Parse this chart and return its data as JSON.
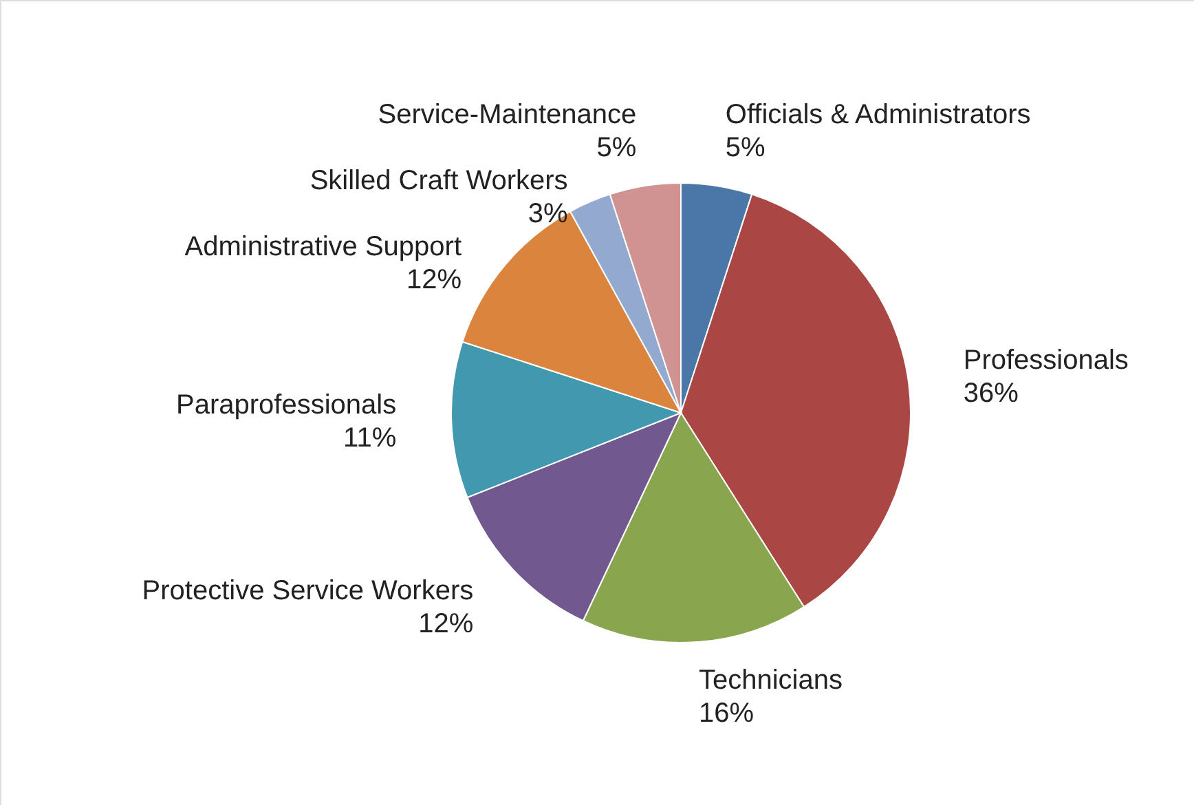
{
  "chart_data": {
    "type": "pie",
    "categories": [
      "Officials & Administrators",
      "Professionals",
      "Technicians",
      "Protective Service Workers",
      "Paraprofessionals",
      "Administrative Support",
      "Skilled Craft  Workers",
      "Service-Maintenance"
    ],
    "values": [
      5,
      36,
      16,
      12,
      11,
      12,
      3,
      5
    ],
    "value_labels": [
      "5%",
      "36%",
      "16%",
      "12%",
      "11%",
      "12%",
      "3%",
      "5%"
    ],
    "colors": [
      "#4a76a8",
      "#aa4644",
      "#89a54e",
      "#71588f",
      "#4198af",
      "#db843d",
      "#93a9cf",
      "#d19392"
    ]
  }
}
